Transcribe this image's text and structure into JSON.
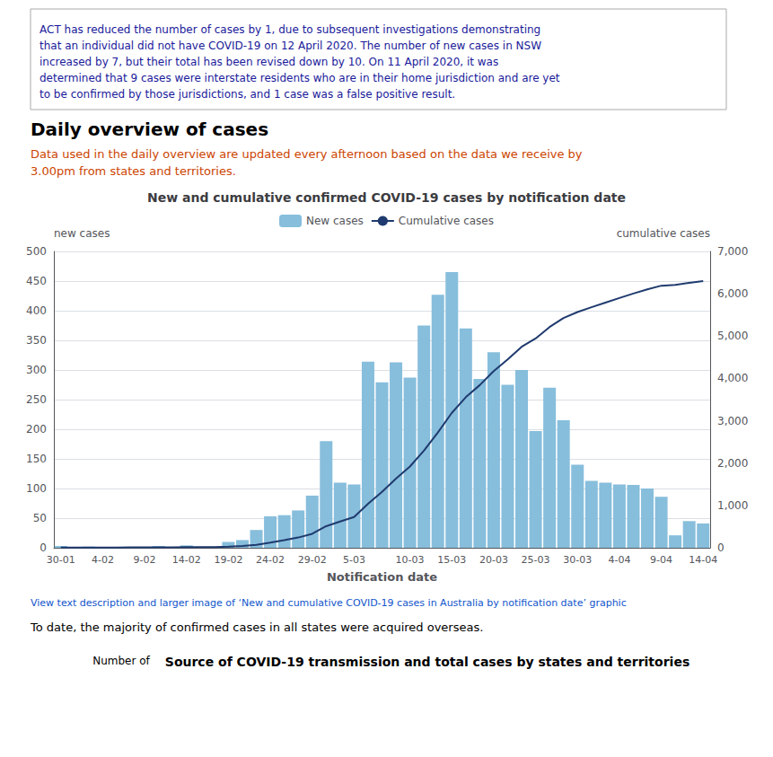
{
  "chart_data": {
    "type": "bar",
    "title": "New and cumulative confirmed COVID-19 cases by notification date",
    "xlabel": "Notification date",
    "ylabel": "new cases",
    "y2label": "cumulative cases",
    "categories": [
      "30-01",
      null,
      null,
      "4-02",
      null,
      null,
      "9-02",
      null,
      null,
      "14-02",
      null,
      null,
      "19-02",
      null,
      null,
      "24-02",
      null,
      null,
      "29-02",
      null,
      null,
      "5-03",
      null,
      null,
      null,
      "10-03",
      null,
      null,
      "15-03",
      null,
      null,
      "20-03",
      null,
      null,
      "25-03",
      null,
      null,
      "30-03",
      null,
      null,
      "4-04",
      null,
      null,
      "9-04",
      null,
      null,
      "14-04"
    ],
    "series": [
      {
        "name": "New cases",
        "type": "bar",
        "color": "#87BEDC",
        "values": [
          3,
          1,
          2,
          1,
          0,
          1,
          1,
          3,
          1,
          4,
          0,
          1,
          10,
          13,
          30,
          53,
          55,
          63,
          88,
          180,
          110,
          107,
          314,
          279,
          313,
          287,
          375,
          427,
          465,
          370,
          285,
          330,
          275,
          300,
          197,
          270,
          215,
          140,
          113,
          110,
          107,
          106,
          100,
          86,
          21,
          45,
          41
        ]
      },
      {
        "name": "Cumulative cases",
        "type": "line",
        "color": "#1F3A6E",
        "axis": "y2",
        "values": [
          3,
          4,
          6,
          7,
          7,
          8,
          9,
          12,
          13,
          17,
          17,
          18,
          28,
          41,
          71,
          124,
          179,
          242,
          330,
          510,
          620,
          727,
          1041,
          1320,
          1633,
          1920,
          2295,
          2722,
          3187,
          3557,
          3842,
          4172,
          4447,
          4747,
          4944,
          5214,
          5429,
          5569,
          5682,
          5792,
          5899,
          6005,
          6105,
          6191,
          6212,
          6257,
          6298
        ]
      }
    ],
    "ylim": [
      0,
      500
    ],
    "yticks": [
      0,
      50,
      100,
      150,
      200,
      250,
      300,
      350,
      400,
      450,
      500
    ],
    "y2lim": [
      0,
      7000
    ],
    "y2ticks": [
      0,
      1000,
      2000,
      3000,
      4000,
      5000,
      6000,
      7000
    ],
    "grid": true,
    "legend": "top",
    "annotations": [
      {
        "text": "ACT has reduced the number of cases by 1, due to subsequent investigations demonstrating\nthat an individual did not have COVID-19 on 12 April 2020. The number of new cases in NSW\nincreased by 7, but their total has been revised down by 10. On 11 April 2020, it was\ndetermined that 9 cases were interstate residents who are in their home jurisdiction and are yet\nto be confirmed by those jurisdictions, and 1 case was a false positive result.",
        "color": "#1a1a9a"
      },
      {
        "text": "Daily overview of cases",
        "color": "#000000"
      },
      {
        "text": "Data used in the daily overview are updated every afternoon based on the data we receive by\n3.00pm from states and territories.",
        "color": "#cc4400"
      },
      {
        "text": "View text description and larger image of ‘New and cumulative COVID-19 cases in Australia by notification date’ graphic",
        "color": "#1155CC"
      },
      {
        "text": "To date, the majority of confirmed cases in all states were acquired overseas.",
        "color": "#000000"
      },
      {
        "text": "Number of",
        "color": "#000000"
      },
      {
        "text": "Source of COVID-19 transmission and total cases by states and territories",
        "color": "#000000"
      }
    ]
  }
}
